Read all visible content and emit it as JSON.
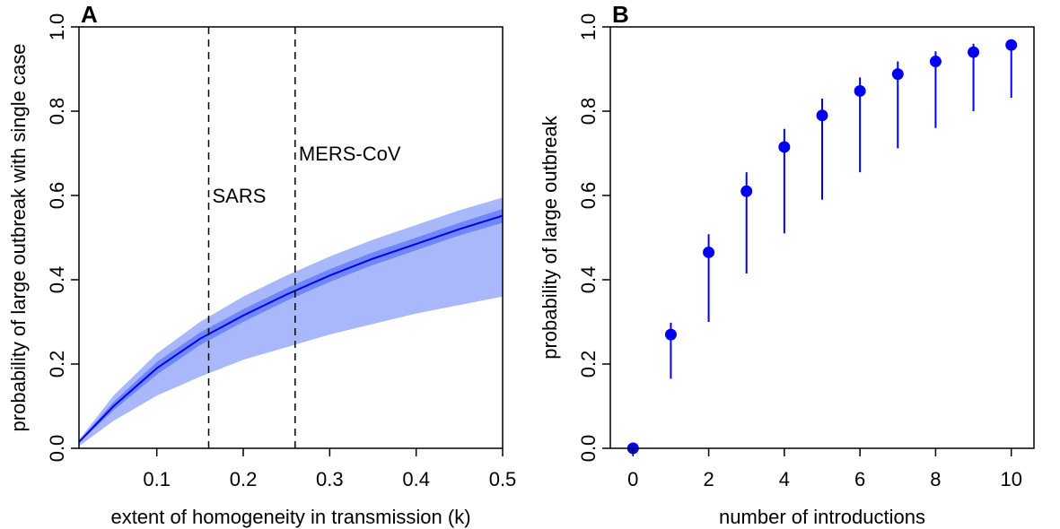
{
  "chart_data": [
    {
      "panel": "A",
      "type": "area",
      "xlabel": "extent of homogeneity in transmission (k)",
      "ylabel": "probability of large outbreak with single case",
      "xlim": [
        0.01,
        0.5
      ],
      "ylim": [
        0,
        1
      ],
      "xticks": [
        "0.1",
        "0.2",
        "0.3",
        "0.4",
        "0.5"
      ],
      "yticks": [
        "0.0",
        "0.2",
        "0.4",
        "0.6",
        "0.8",
        "1.0"
      ],
      "x": [
        0.01,
        0.05,
        0.1,
        0.15,
        0.2,
        0.25,
        0.3,
        0.35,
        0.4,
        0.45,
        0.5
      ],
      "series": [
        {
          "values": [
            0.015,
            0.1,
            0.19,
            0.26,
            0.315,
            0.365,
            0.41,
            0.45,
            0.485,
            0.52,
            0.552
          ]
        }
      ],
      "inner_band": {
        "lower": [
          0.013,
          0.09,
          0.175,
          0.245,
          0.3,
          0.35,
          0.395,
          0.435,
          0.47,
          0.505,
          0.535
        ],
        "upper": [
          0.017,
          0.11,
          0.205,
          0.275,
          0.33,
          0.38,
          0.425,
          0.465,
          0.5,
          0.535,
          0.568
        ]
      },
      "outer_band": {
        "lower": [
          0.005,
          0.065,
          0.125,
          0.17,
          0.21,
          0.24,
          0.27,
          0.295,
          0.32,
          0.34,
          0.36
        ],
        "upper": [
          0.02,
          0.125,
          0.225,
          0.3,
          0.36,
          0.41,
          0.455,
          0.495,
          0.53,
          0.565,
          0.595
        ]
      },
      "vlines": [
        {
          "x": 0.16,
          "label": "SARS",
          "label_y": 0.6
        },
        {
          "x": 0.26,
          "label": "MERS-CoV",
          "label_y": 0.7
        }
      ],
      "colors": {
        "line": "#0000ee",
        "inner_band": "#6f87f7",
        "outer_band": "#a9b8fb"
      },
      "grid": false
    },
    {
      "panel": "B",
      "type": "scatter",
      "xlabel": "number of introductions",
      "ylabel": "probability of large outbreak",
      "xlim": [
        -0.6,
        10.6
      ],
      "ylim": [
        0,
        1
      ],
      "xticks": [
        "0",
        "2",
        "4",
        "6",
        "8",
        "10"
      ],
      "yticks": [
        "0.0",
        "0.2",
        "0.4",
        "0.6",
        "0.8",
        "1.0"
      ],
      "x": [
        0,
        1,
        2,
        3,
        4,
        5,
        6,
        7,
        8,
        9,
        10
      ],
      "series": [
        {
          "values": [
            0.0,
            0.27,
            0.465,
            0.61,
            0.715,
            0.79,
            0.848,
            0.888,
            0.918,
            0.94,
            0.957
          ]
        }
      ],
      "error_low": [
        0.0,
        0.165,
        0.3,
        0.415,
        0.51,
        0.59,
        0.655,
        0.712,
        0.76,
        0.8,
        0.832
      ],
      "error_high": [
        0.0,
        0.298,
        0.508,
        0.655,
        0.758,
        0.83,
        0.88,
        0.918,
        0.942,
        0.96,
        0.97
      ],
      "colors": {
        "points": "#0000ee"
      },
      "grid": false
    }
  ]
}
